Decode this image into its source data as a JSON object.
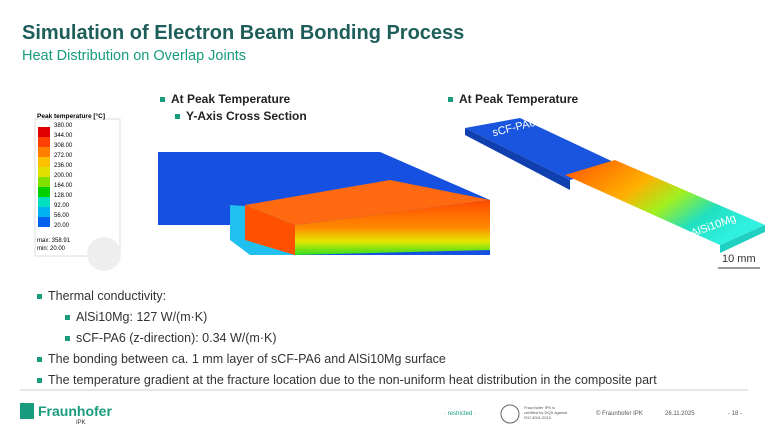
{
  "header": {
    "title": "Simulation of Electron Beam Bonding Process",
    "subtitle": "Heat Distribution on Overlap Joints"
  },
  "figure_left": {
    "heading": "At Peak Temperature",
    "subheading": "Y-Axis Cross Section"
  },
  "figure_right": {
    "heading": "At Peak Temperature",
    "label_top": "sCF-PA6",
    "label_bottom": "AlSi10Mg",
    "scale": "10 mm"
  },
  "legend": {
    "title": "Peak temperature [°C]",
    "levels": [
      "380.00",
      "344.00",
      "308.00",
      "272.00",
      "236.00",
      "200.00",
      "164.00",
      "128.00",
      "92.00",
      "56.00",
      "20.00"
    ],
    "max": "max: 358.91",
    "min": "min: 20.00"
  },
  "bullets": [
    {
      "text": "Thermal conductivity:",
      "items": [
        "AlSi10Mg: 127 W/(m·K)",
        "sCF-PA6 (z-direction): 0.34 W/(m·K)"
      ]
    },
    {
      "text": "The bonding between ca. 1 mm layer of sCF-PA6 and AlSi10Mg surface",
      "items": []
    },
    {
      "text": "The temperature gradient at the fracture location due to the non-uniform heat distribution in the composite part",
      "items": []
    }
  ],
  "footer": {
    "brand": "Fraunhofer",
    "institute": "IPK",
    "classification": "· restricted ·",
    "certificate": "Fraunhofer IPK is certified by DQS against ISO 9001:2015",
    "copyright": "© Fraunhofer IPK",
    "date": "26.11.2025",
    "page": "- 18 -"
  }
}
